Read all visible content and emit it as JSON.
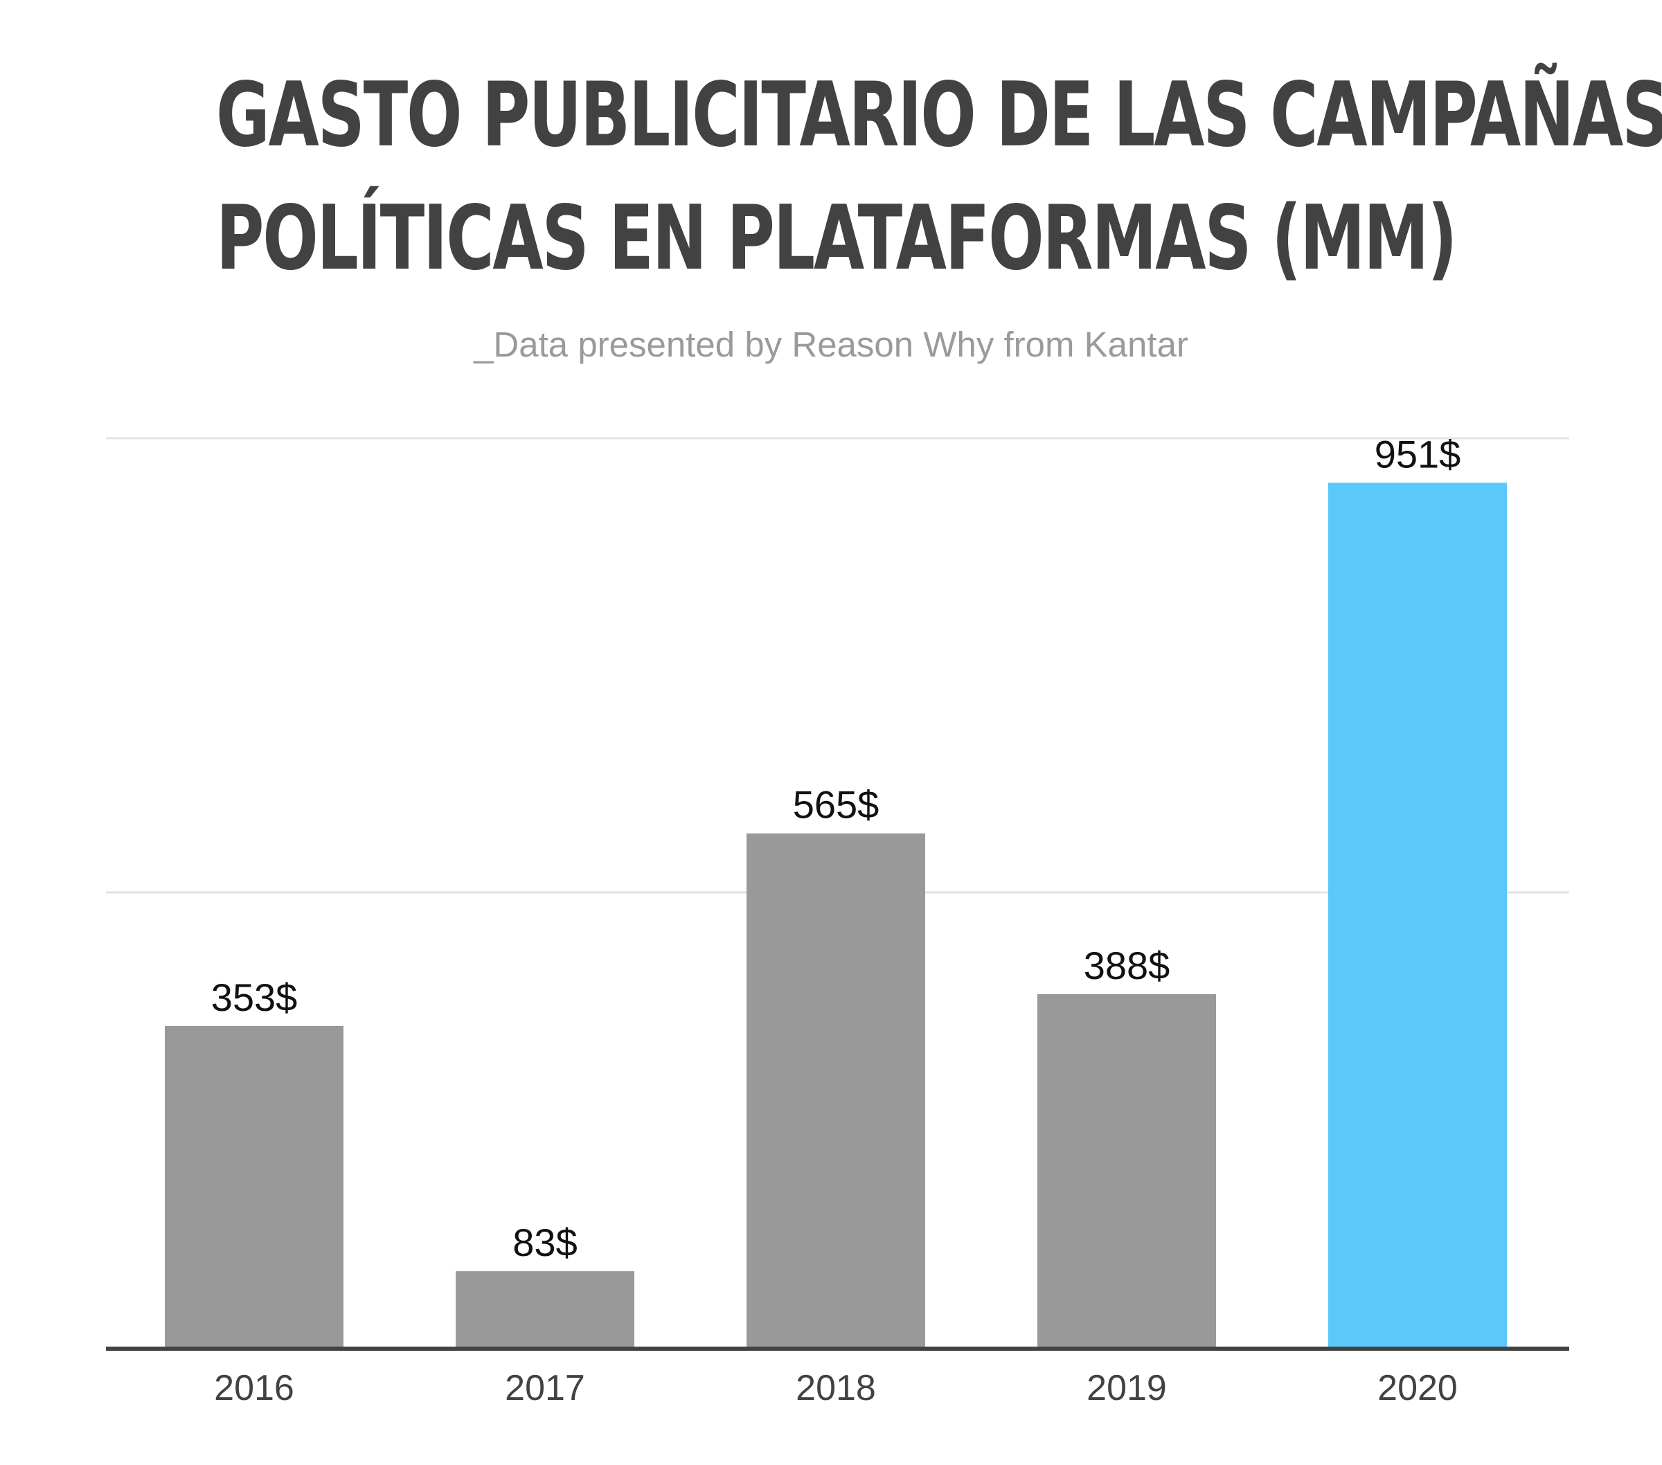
{
  "title_lines": [
    "GASTO PUBLICITARIO DE LAS CAMPAÑAS",
    "POLÍTICAS EN PLATAFORMAS (MM)"
  ],
  "subtitle": "_Data presented by Reason Why from Kantar",
  "colors": {
    "bar": "#999999",
    "highlight_bar": "#5ac8fa",
    "gridline": "#e3e3e3",
    "baseline": "#424242",
    "value_label": "#111111",
    "tick_label": "#424242"
  },
  "chart_data": {
    "type": "bar",
    "title": "GASTO PUBLICITARIO DE LAS CAMPAÑAS POLÍTICAS EN PLATAFORMAS (MM)",
    "subtitle": "_Data presented by Reason Why from Kantar",
    "categories": [
      "2016",
      "2017",
      "2018",
      "2019",
      "2020"
    ],
    "values": [
      353,
      83,
      565,
      388,
      951
    ],
    "value_labels": [
      "353$",
      "83$",
      "565$",
      "388$",
      "951$"
    ],
    "highlight_index": 4,
    "xlabel": "",
    "ylabel": "",
    "ylim": [
      0,
      1000
    ],
    "gridlines": [
      500,
      1000
    ],
    "grid": true,
    "legend": "none"
  }
}
